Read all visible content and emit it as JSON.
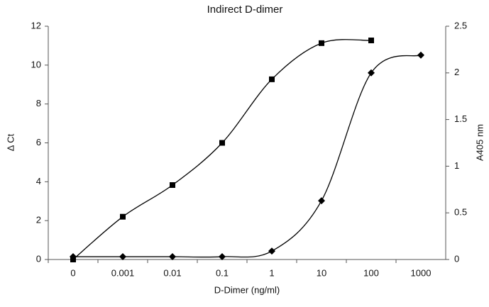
{
  "chart_data": {
    "type": "line",
    "title": "Indirect D-dimer",
    "x_label": "D-Dimer (ng/ml)",
    "y_label": "Δ Ct",
    "y2_label": "A405 nm",
    "categories": [
      "0",
      "0.001",
      "0.01",
      "0.1",
      "1",
      "10",
      "100",
      "1000"
    ],
    "series": [
      {
        "name": "ΔCt",
        "color": "#000000",
        "marker": "square",
        "values": [
          0.0,
          2.2,
          3.83,
          6.0,
          9.27,
          11.13,
          11.27,
          null
        ]
      },
      {
        "name": "A405",
        "color": "#000000",
        "marker": "diamond",
        "axis": "y2",
        "values": [
          0.03,
          0.03,
          0.03,
          0.03,
          0.09,
          0.63,
          2.0,
          2.19
        ]
      }
    ],
    "ylim": [
      0,
      12
    ],
    "yticks": [
      0,
      2,
      4,
      6,
      8,
      10,
      12
    ],
    "y2lim": [
      0,
      2.5
    ],
    "y2ticks": [
      0,
      0.5,
      1,
      1.5,
      2,
      2.5
    ],
    "grid": false
  }
}
